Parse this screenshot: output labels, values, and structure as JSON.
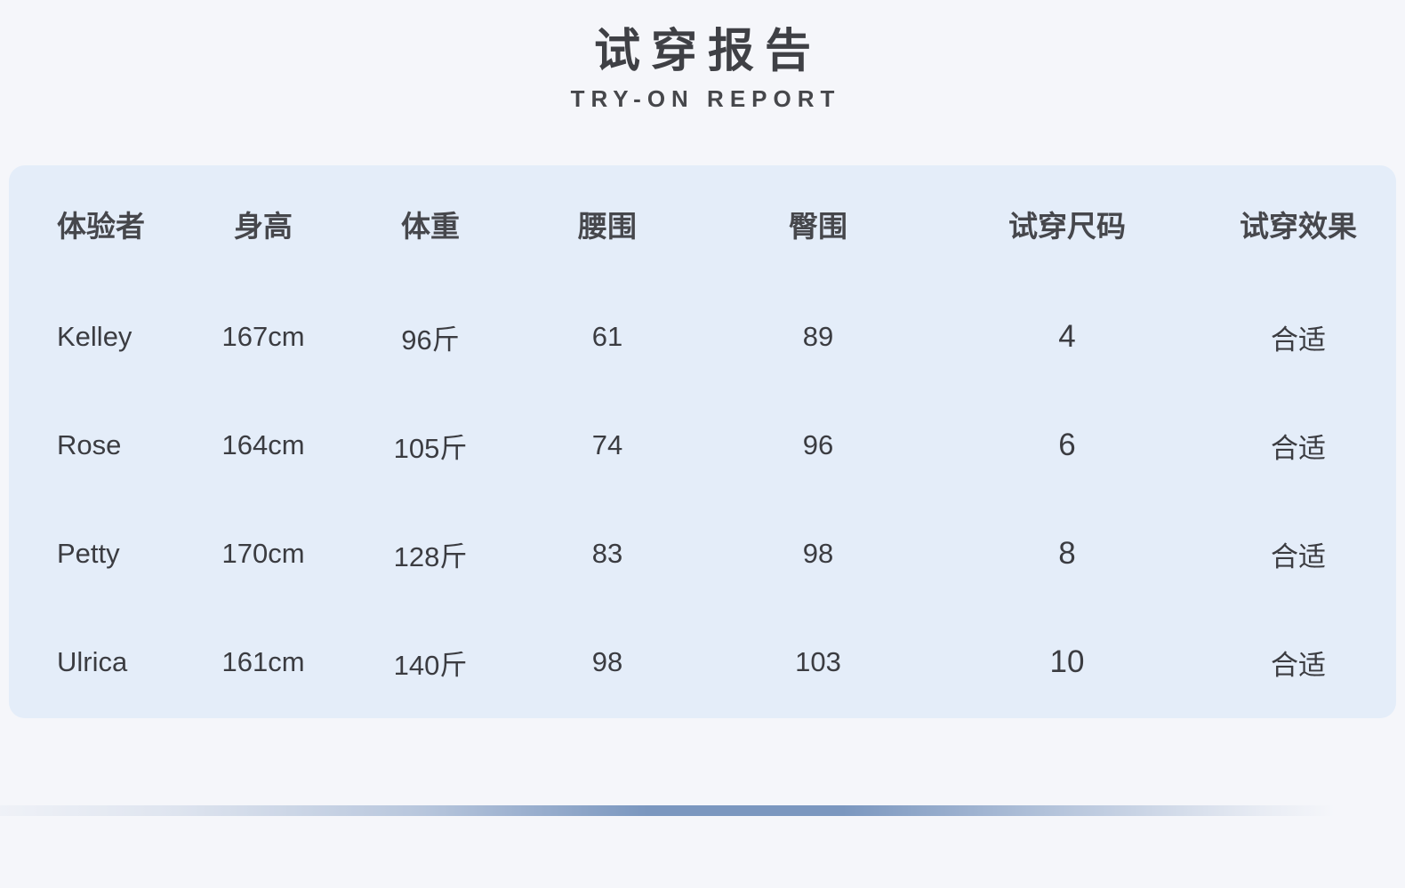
{
  "page": {
    "title": "试穿报告",
    "subtitle": "TRY-ON REPORT"
  },
  "table": {
    "columns": [
      {
        "key": "tester",
        "label": "体验者"
      },
      {
        "key": "height",
        "label": "身高"
      },
      {
        "key": "weight",
        "label": "体重"
      },
      {
        "key": "waist",
        "label": "腰围"
      },
      {
        "key": "hip",
        "label": "臀围"
      },
      {
        "key": "size",
        "label": "试穿尺码"
      },
      {
        "key": "effect",
        "label": "试穿效果"
      }
    ],
    "rows": [
      {
        "tester": "Kelley",
        "height": "167cm",
        "weight": "96斤",
        "waist": "61",
        "hip": "89",
        "size": "4",
        "effect": "合适"
      },
      {
        "tester": "Rose",
        "height": "164cm",
        "weight": "105斤",
        "waist": "74",
        "hip": "96",
        "size": "6",
        "effect": "合适"
      },
      {
        "tester": "Petty",
        "height": "170cm",
        "weight": "128斤",
        "waist": "83",
        "hip": "98",
        "size": "8",
        "effect": "合适"
      },
      {
        "tester": "Ulrica",
        "height": "161cm",
        "weight": "140斤",
        "waist": "98",
        "hip": "103",
        "size": "10",
        "effect": "合适"
      }
    ]
  },
  "colors": {
    "page_bg": "#f5f6fa",
    "card_bg": "#e4edf9",
    "title_text": "#3f4045",
    "header_text": "#46474c",
    "body_text": "#3b3c41",
    "accent_bar": "#7b97bf"
  }
}
